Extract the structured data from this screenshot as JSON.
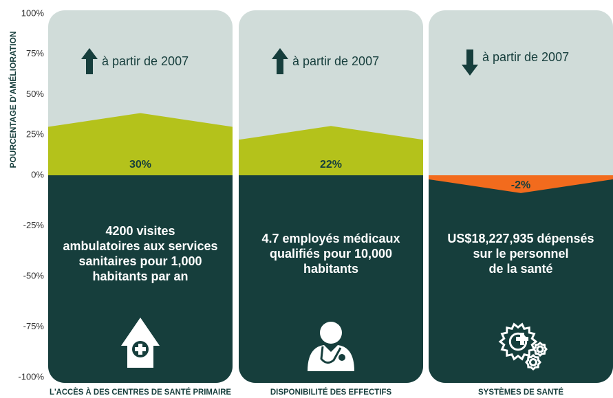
{
  "chart_data": {
    "type": "bar",
    "y_label": "POURCENTAGE  D'AMÉLIORATION",
    "categories": [
      "L'ACCÈS À DES CENTRES DE SANTÉ PRIMAIRE",
      "DISPONIBILITÉ DES EFFECTIFS",
      "SYSTÈMES DE SANTÉ"
    ],
    "values": [
      30,
      22,
      -2
    ],
    "value_labels": [
      "30%",
      "22%",
      "-2%"
    ],
    "colors": [
      "#b4c21b",
      "#b4c21b",
      "#f26b1d"
    ],
    "panel_color": "#d0dcd9",
    "base_color": "#163e3c",
    "trend_labels": [
      "à partir de 2007",
      "à partir de 2007",
      "à partir de 2007"
    ],
    "descriptions": [
      [
        "4200 visites",
        "ambulatoires aux services",
        "sanitaires pour 1,000",
        "habitants par an"
      ],
      [
        "4.7 employés médicaux",
        "qualifiés pour 10,000",
        "habitants"
      ],
      [
        "US$18,227,935 dépensés",
        "sur le personnel",
        "de la santé"
      ]
    ],
    "ylim": [
      -100,
      100
    ],
    "yticks": [
      {
        "value": 100,
        "label": "100%"
      },
      {
        "value": 75,
        "label": "75%"
      },
      {
        "value": 50,
        "label": "50%"
      },
      {
        "value": 25,
        "label": "25%"
      },
      {
        "value": 0,
        "label": "0%"
      },
      {
        "value": -25,
        "label": "-25%"
      },
      {
        "value": -50,
        "label": "-50%"
      },
      {
        "value": -75,
        "label": "-75%"
      },
      {
        "value": -100,
        "label": "-100%"
      }
    ]
  }
}
